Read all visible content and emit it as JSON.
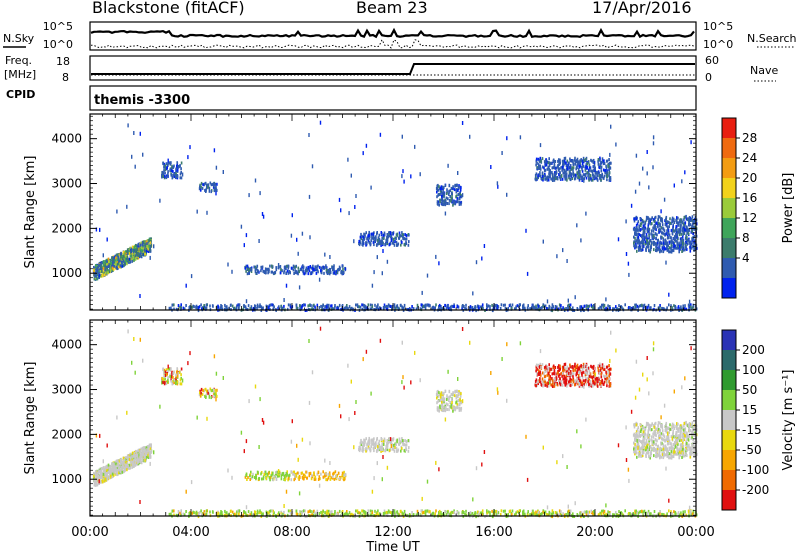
{
  "header": {
    "station": "Blackstone (fitACF)",
    "beam": "Beam 23",
    "date": "17/Apr/2016"
  },
  "top_panels": {
    "nsky_label": "N.Sky",
    "nsearch_label": "N.Search",
    "freq_label_1": "Freq.",
    "freq_label_2": "[MHz]",
    "nave_label": "Nave",
    "cpid_label": "CPID",
    "cpid_text": "themis -3300",
    "noise_ticks_left": [
      "10^5",
      "10^0"
    ],
    "noise_ticks_right": [
      "10^5",
      "10^0"
    ],
    "freq_ticks": [
      "18",
      "8"
    ],
    "nave_ticks": [
      "60",
      "0"
    ]
  },
  "colors": {
    "power": [
      "#0022ee",
      "#2f5bb0",
      "#3c7c6c",
      "#3fa55a",
      "#9acb3a",
      "#f2d21b",
      "#f39c12",
      "#ef6a10",
      "#e81e10"
    ],
    "velocity": [
      "#2a33b5",
      "#2b6a6b",
      "#2f9a2f",
      "#7fd33a",
      "#c8c8c8",
      "#e8d80e",
      "#f7a600",
      "#f06a00",
      "#e01010"
    ]
  },
  "chart_data": [
    {
      "type": "heatmap",
      "name": "power",
      "ylabel": "Slant Range [km]",
      "xlabel": "",
      "xlim": [
        0,
        24
      ],
      "ylim": [
        180,
        4550
      ],
      "x_ticks": [
        "00:00",
        "04:00",
        "08:00",
        "12:00",
        "16:00",
        "20:00",
        "00:00"
      ],
      "y_ticks": [
        1000,
        2000,
        3000,
        4000
      ],
      "colorbar": {
        "label": "Power [dB]",
        "ticks": [
          "4",
          "8",
          "12",
          "16",
          "20",
          "24",
          "28"
        ]
      },
      "regions": [
        {
          "t0": 0.1,
          "t1": 2.4,
          "r0": 900,
          "r1": 1900,
          "level": "mixed"
        },
        {
          "t0": 2.8,
          "t1": 3.6,
          "r0": 3150,
          "r1": 3500,
          "level": "low"
        },
        {
          "t0": 4.3,
          "t1": 5.0,
          "r0": 2850,
          "r1": 3050,
          "level": "low"
        },
        {
          "t0": 6.1,
          "t1": 10.1,
          "r0": 1020,
          "r1": 1200,
          "level": "low"
        },
        {
          "t0": 10.6,
          "t1": 12.6,
          "r0": 1650,
          "r1": 1950,
          "level": "low"
        },
        {
          "t0": 13.7,
          "t1": 14.7,
          "r0": 2550,
          "r1": 3000,
          "level": "low"
        },
        {
          "t0": 17.6,
          "t1": 20.6,
          "r0": 3100,
          "r1": 3600,
          "level": "low"
        },
        {
          "t0": 21.5,
          "t1": 24.0,
          "r0": 1500,
          "r1": 2300,
          "level": "low"
        },
        {
          "t0": 3.1,
          "t1": 24.0,
          "r0": 200,
          "r1": 330,
          "level": "low"
        }
      ]
    },
    {
      "type": "heatmap",
      "name": "velocity",
      "ylabel": "Slant Range [km]",
      "xlabel": "Time UT",
      "xlim": [
        0,
        24
      ],
      "ylim": [
        180,
        4550
      ],
      "x_ticks": [
        "00:00",
        "04:00",
        "08:00",
        "12:00",
        "16:00",
        "20:00",
        "00:00"
      ],
      "y_ticks": [
        1000,
        2000,
        3000,
        4000
      ],
      "colorbar": {
        "label": "Velocity [m s⁻¹]",
        "ticks": [
          "200",
          "100",
          "50",
          "15",
          "-15",
          "-50",
          "-100",
          "-200"
        ]
      },
      "regions": [
        {
          "t0": 0.1,
          "t1": 2.4,
          "r0": 900,
          "r1": 1900,
          "level": "gray"
        },
        {
          "t0": 2.8,
          "t1": 3.6,
          "r0": 3150,
          "r1": 3500,
          "level": "mixed"
        },
        {
          "t0": 4.3,
          "t1": 5.0,
          "r0": 2850,
          "r1": 3050,
          "level": "mixed"
        },
        {
          "t0": 6.1,
          "t1": 8.0,
          "r0": 1020,
          "r1": 1200,
          "level": "green"
        },
        {
          "t0": 8.0,
          "t1": 10.1,
          "r0": 1020,
          "r1": 1200,
          "level": "orange"
        },
        {
          "t0": 10.6,
          "t1": 12.6,
          "r0": 1650,
          "r1": 1950,
          "level": "gray"
        },
        {
          "t0": 13.7,
          "t1": 14.7,
          "r0": 2550,
          "r1": 3000,
          "level": "gray"
        },
        {
          "t0": 17.6,
          "t1": 20.6,
          "r0": 3100,
          "r1": 3600,
          "level": "red"
        },
        {
          "t0": 21.5,
          "t1": 24.0,
          "r0": 1500,
          "r1": 2300,
          "level": "gray"
        },
        {
          "t0": 3.1,
          "t1": 24.0,
          "r0": 200,
          "r1": 330,
          "level": "green"
        }
      ]
    }
  ]
}
